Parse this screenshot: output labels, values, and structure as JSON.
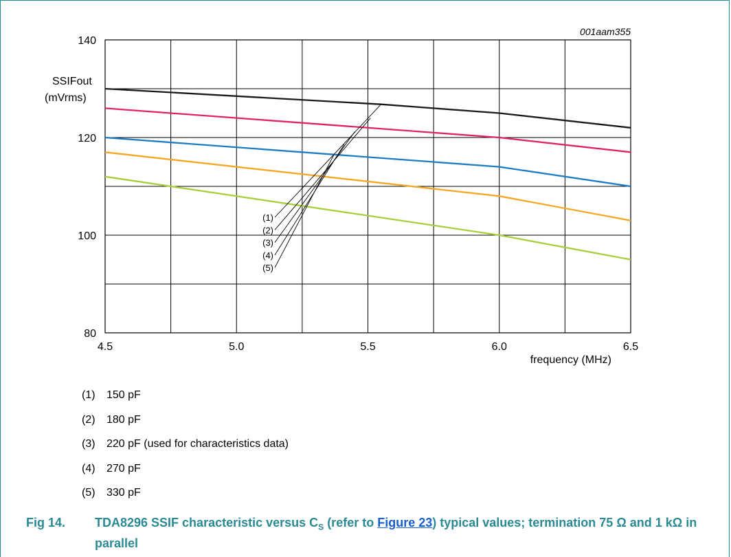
{
  "chart_data": {
    "type": "line",
    "figure_id": "001aam355",
    "ylabel_line1": "SSIFout",
    "ylabel_line2": "(mVrms)",
    "xlabel": "frequency (MHz)",
    "xlim": [
      4.5,
      6.5
    ],
    "ylim": [
      80,
      140
    ],
    "x_ticks": [
      "4.5",
      "5.0",
      "5.5",
      "6.0",
      "6.5"
    ],
    "y_ticks": [
      "80",
      "100",
      "120",
      "140"
    ],
    "grid": true,
    "series": [
      {
        "name": "(1)",
        "color": "#1a1a1a",
        "x": [
          4.5,
          5.55,
          6.0,
          6.5
        ],
        "y": [
          130.0,
          126.8,
          125.0,
          122.0
        ]
      },
      {
        "name": "(2)",
        "color": "#e0245e",
        "x": [
          4.5,
          6.0,
          6.5
        ],
        "y": [
          126.0,
          120.0,
          117.0
        ]
      },
      {
        "name": "(3)",
        "color": "#1b7bc4",
        "x": [
          4.5,
          6.0,
          6.5
        ],
        "y": [
          120.0,
          114.0,
          110.0
        ]
      },
      {
        "name": "(4)",
        "color": "#f5a623",
        "x": [
          4.5,
          6.0,
          6.5
        ],
        "y": [
          117.0,
          108.0,
          103.0
        ]
      },
      {
        "name": "(5)",
        "color": "#a6cf3c",
        "x": [
          4.5,
          6.0,
          6.5
        ],
        "y": [
          112.0,
          100.0,
          95.0
        ]
      }
    ],
    "callout_targets": [
      {
        "label": "(1)",
        "x": 5.55,
        "y": 126.8
      },
      {
        "label": "(2)",
        "x": 5.51,
        "y": 124.0
      },
      {
        "label": "(3)",
        "x": 5.45,
        "y": 121.2
      },
      {
        "label": "(4)",
        "x": 5.41,
        "y": 118.6
      },
      {
        "label": "(5)",
        "x": 5.37,
        "y": 116.4
      }
    ]
  },
  "legend": [
    {
      "num": "(1)",
      "label": "150 pF"
    },
    {
      "num": "(2)",
      "label": "180 pF"
    },
    {
      "num": "(3)",
      "label": "220 pF (used for characteristics data)"
    },
    {
      "num": "(4)",
      "label": "270 pF"
    },
    {
      "num": "(5)",
      "label": "330 pF"
    }
  ],
  "caption": {
    "number": "Fig 14.",
    "pre": "TDA8296 SSIF characteristic versus C",
    "sub": "S",
    "mid": " (refer to ",
    "link": "Figure 23",
    "post": ") typical values; termination 75 Ω and 1 kΩ in parallel"
  }
}
